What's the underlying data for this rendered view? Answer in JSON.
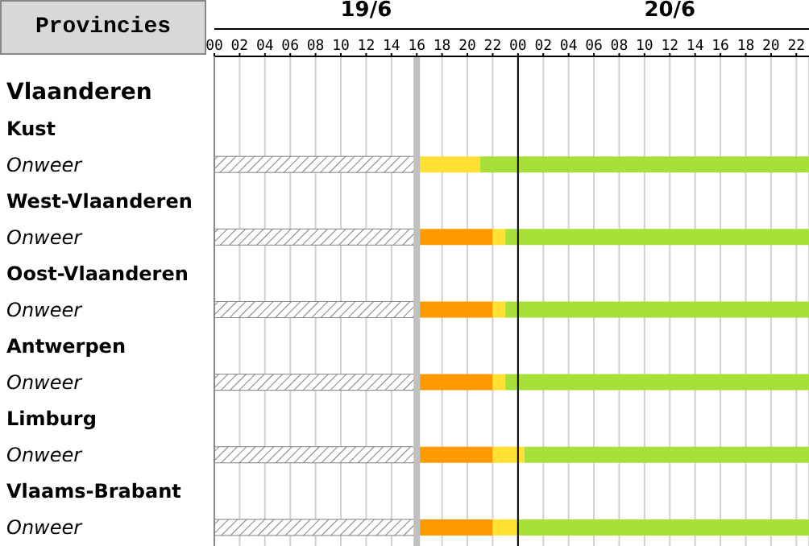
{
  "chart_data": {
    "type": "bar",
    "orientation": "horizontal",
    "stacked": true,
    "ylabel": "Provincies",
    "categories": [
      "Vlaanderen",
      "Kust",
      "Onweer",
      "West-Vlaanderen",
      "Onweer",
      "Oost-Vlaanderen",
      "Onweer",
      "Antwerpen",
      "Onweer",
      "Limburg",
      "Onweer",
      "Vlaams-Brabant",
      "Onweer"
    ],
    "series": [
      {
        "color": "#808080",
        "values": [
          null,
          null,
          16,
          null,
          16,
          null,
          16,
          null,
          16,
          null,
          16,
          null,
          16
        ]
      },
      {
        "color": "#ff9900",
        "values": [
          null,
          null,
          null,
          null,
          6,
          null,
          6,
          null,
          6,
          null,
          6,
          null,
          6
        ]
      },
      {
        "color": "#ffe033",
        "values": [
          null,
          null,
          5,
          null,
          1,
          null,
          1,
          null,
          1,
          null,
          2.5,
          null,
          2
        ]
      },
      {
        "color": "#a8e03a",
        "values": [
          null,
          null,
          26,
          null,
          24,
          null,
          24,
          null,
          24,
          null,
          22.5,
          null,
          23
        ]
      }
    ],
    "xlim": [
      0,
      47
    ],
    "xticks": [
      {
        "value": 0,
        "label": "00"
      },
      {
        "value": 2,
        "label": "02"
      },
      {
        "value": 4,
        "label": "04"
      },
      {
        "value": 6,
        "label": "06"
      },
      {
        "value": 8,
        "label": "08"
      },
      {
        "value": 10,
        "label": "10"
      },
      {
        "value": 12,
        "label": "12"
      },
      {
        "value": 14,
        "label": "14"
      },
      {
        "value": 16,
        "label": "16"
      },
      {
        "value": 18,
        "label": "18"
      },
      {
        "value": 20,
        "label": "20"
      },
      {
        "value": 22,
        "label": "22"
      },
      {
        "value": 24,
        "label": "00"
      },
      {
        "value": 26,
        "label": "02"
      },
      {
        "value": 28,
        "label": "04"
      },
      {
        "value": 30,
        "label": "06"
      },
      {
        "value": 32,
        "label": "08"
      },
      {
        "value": 34,
        "label": "10"
      },
      {
        "value": 36,
        "label": "12"
      },
      {
        "value": 38,
        "label": "14"
      },
      {
        "value": 40,
        "label": "16"
      },
      {
        "value": 42,
        "label": "18"
      },
      {
        "value": 44,
        "label": "20"
      },
      {
        "value": 46,
        "label": "22"
      }
    ],
    "annotations": [
      "19/6",
      "20/6"
    ],
    "ref_lines": [
      {
        "axis": "x",
        "value": 16,
        "color": "#c0c0c0"
      },
      {
        "axis": "x",
        "value": 24,
        "color": "#000000"
      }
    ],
    "grid": "x"
  }
}
